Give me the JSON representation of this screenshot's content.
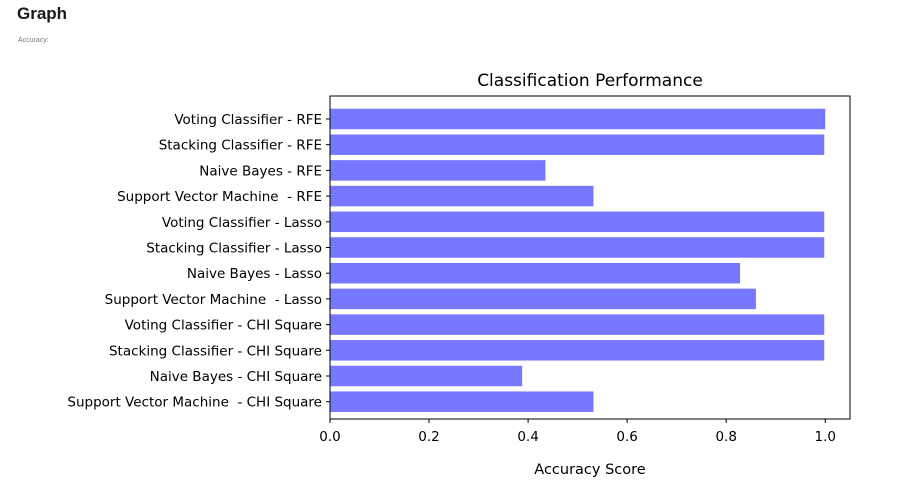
{
  "page": {
    "heading": "Graph",
    "subheading": "Accuracy:"
  },
  "chart_data": {
    "type": "bar",
    "orientation": "horizontal",
    "title": "Classification Performance",
    "xlabel": "Accuracy Score",
    "ylabel": "",
    "xlim": [
      0,
      1.05
    ],
    "xticks": [
      "0.0",
      "0.2",
      "0.4",
      "0.6",
      "0.8",
      "1.0"
    ],
    "bar_color": "#7777ff",
    "grid": false,
    "categories": [
      "Voting Classifier - RFE",
      "Stacking Classifier - RFE",
      "Naive Bayes - RFE",
      "Support Vector Machine  - RFE",
      "Voting Classifier - Lasso",
      "Stacking Classifier - Lasso",
      "Naive Bayes - Lasso",
      "Support Vector Machine  - Lasso",
      "Voting Classifier - CHI Square",
      "Stacking Classifier - CHI Square",
      "Naive Bayes - CHI Square",
      "Support Vector Machine  - CHI Square"
    ],
    "values": [
      1.0,
      0.998,
      0.435,
      0.532,
      0.998,
      0.998,
      0.828,
      0.86,
      0.998,
      0.998,
      0.388,
      0.532
    ]
  }
}
